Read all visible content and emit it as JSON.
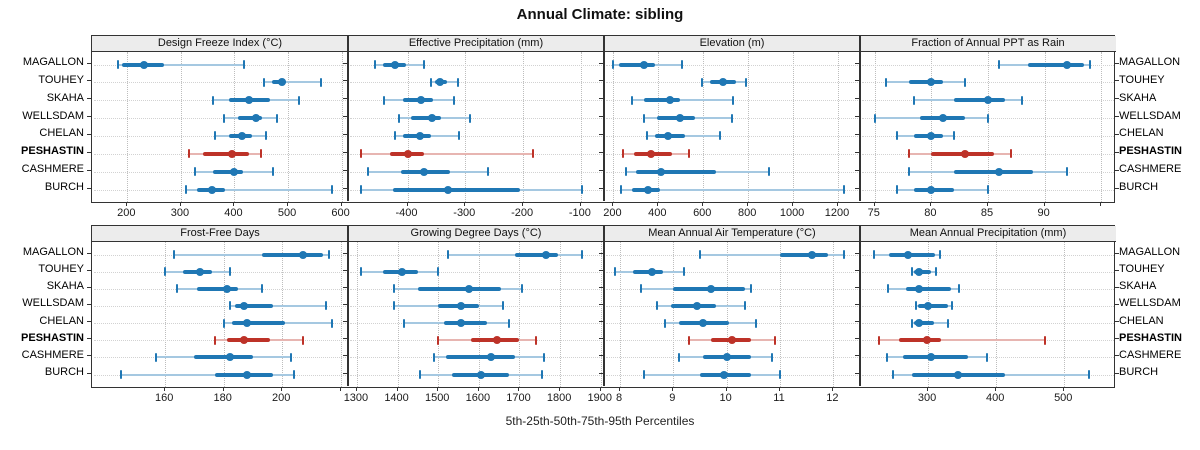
{
  "title": "Annual Climate: sibling",
  "caption": "5th-25th-50th-75th-95th Percentiles",
  "percentiles": [
    "5th",
    "25th",
    "50th",
    "75th",
    "95th"
  ],
  "sites": [
    {
      "name": "MAGALLON",
      "highlight": false
    },
    {
      "name": "TOUHEY",
      "highlight": false
    },
    {
      "name": "SKAHA",
      "highlight": false
    },
    {
      "name": "WELLSDAM",
      "highlight": false
    },
    {
      "name": "CHELAN",
      "highlight": false
    },
    {
      "name": "PESHASTIN",
      "highlight": true
    },
    {
      "name": "CASHMERE",
      "highlight": false
    },
    {
      "name": "BURCH",
      "highlight": false
    }
  ],
  "colors": {
    "blue": "#1f77b4",
    "blue_light": "#a5c8e1",
    "red": "#bd3228",
    "red_light": "#e7b5b1",
    "header_bg": "#ececec",
    "border": "#333333",
    "grid": "#bdbdbd"
  },
  "chart_data": [
    {
      "type": "dotplot-interval",
      "title": "Design Freeze Index (°C)",
      "xlim": [
        134,
        612
      ],
      "ticks": [
        {
          "v": 200,
          "label": "200"
        },
        {
          "v": 300,
          "label": "300"
        },
        {
          "v": 400,
          "label": "400"
        },
        {
          "v": 500,
          "label": "500"
        },
        {
          "v": 600,
          "label": "600"
        }
      ],
      "series": [
        {
          "name": "MAGALLON",
          "values": [
            183,
            190,
            232,
            268,
            418
          ]
        },
        {
          "name": "TOUHEY",
          "values": [
            456,
            471,
            489,
            497,
            561
          ]
        },
        {
          "name": "SKAHA",
          "values": [
            360,
            390,
            428,
            467,
            520
          ]
        },
        {
          "name": "WELLSDAM",
          "values": [
            381,
            407,
            440,
            452,
            480
          ]
        },
        {
          "name": "CHELAN",
          "values": [
            363,
            389,
            414,
            432,
            459
          ]
        },
        {
          "name": "PESHASTIN",
          "values": [
            315,
            341,
            395,
            428,
            449
          ]
        },
        {
          "name": "CASHMERE",
          "values": [
            327,
            360,
            399,
            416,
            472
          ]
        },
        {
          "name": "BURCH",
          "values": [
            309,
            330,
            358,
            383,
            582
          ]
        }
      ]
    },
    {
      "type": "dotplot-interval",
      "title": "Effective Precipitation (mm)",
      "xlim": [
        -503,
        -60
      ],
      "ticks": [
        {
          "v": -400,
          "label": "-400"
        },
        {
          "v": -300,
          "label": "-300"
        },
        {
          "v": -200,
          "label": "-200"
        },
        {
          "v": -100,
          "label": "-100"
        }
      ],
      "series": [
        {
          "name": "MAGALLON",
          "values": [
            -456,
            -442,
            -421,
            -403,
            -372
          ]
        },
        {
          "name": "TOUHEY",
          "values": [
            -360,
            -352,
            -344,
            -332,
            -313
          ]
        },
        {
          "name": "SKAHA",
          "values": [
            -441,
            -408,
            -376,
            -356,
            -320
          ]
        },
        {
          "name": "WELLSDAM",
          "values": [
            -415,
            -394,
            -358,
            -342,
            -292
          ]
        },
        {
          "name": "CHELAN",
          "values": [
            -421,
            -408,
            -378,
            -360,
            -311
          ]
        },
        {
          "name": "PESHASTIN",
          "values": [
            -480,
            -430,
            -400,
            -371,
            -183
          ]
        },
        {
          "name": "CASHMERE",
          "values": [
            -468,
            -412,
            -371,
            -327,
            -260
          ]
        },
        {
          "name": "BURCH",
          "values": [
            -480,
            -425,
            -330,
            -205,
            -98
          ]
        }
      ]
    },
    {
      "type": "dotplot-interval",
      "title": "Elevation (m)",
      "xlim": [
        158,
        1298
      ],
      "ticks": [
        {
          "v": 200,
          "label": "200"
        },
        {
          "v": 400,
          "label": "400"
        },
        {
          "v": 600,
          "label": "600"
        },
        {
          "v": 800,
          "label": "800"
        },
        {
          "v": 1000,
          "label": "1000"
        },
        {
          "v": 1200,
          "label": "1200"
        }
      ],
      "series": [
        {
          "name": "MAGALLON",
          "values": [
            197,
            225,
            335,
            385,
            505
          ]
        },
        {
          "name": "TOUHEY",
          "values": [
            595,
            630,
            690,
            745,
            790
          ]
        },
        {
          "name": "SKAHA",
          "values": [
            283,
            337,
            450,
            495,
            733
          ]
        },
        {
          "name": "WELLSDAM",
          "values": [
            334,
            392,
            498,
            564,
            728
          ]
        },
        {
          "name": "CHELAN",
          "values": [
            350,
            384,
            444,
            517,
            673
          ]
        },
        {
          "name": "PESHASTIN",
          "values": [
            244,
            290,
            366,
            460,
            536
          ]
        },
        {
          "name": "CASHMERE",
          "values": [
            256,
            300,
            412,
            658,
            892
          ]
        },
        {
          "name": "BURCH",
          "values": [
            233,
            283,
            353,
            408,
            1228
          ]
        }
      ]
    },
    {
      "type": "dotplot-interval",
      "title": "Fraction of Annual PPT as Rain",
      "xlim": [
        73.7,
        96.3
      ],
      "ticks": [
        {
          "v": 75,
          "label": "75"
        },
        {
          "v": 80,
          "label": "80"
        },
        {
          "v": 85,
          "label": "85"
        },
        {
          "v": 90,
          "label": "90"
        },
        {
          "v": 95,
          "label": ""
        }
      ],
      "series": [
        {
          "name": "MAGALLON",
          "values": [
            86,
            88.5,
            92,
            93.5,
            94
          ]
        },
        {
          "name": "TOUHEY",
          "values": [
            76,
            78,
            80,
            81,
            83
          ]
        },
        {
          "name": "SKAHA",
          "values": [
            78.5,
            82,
            85,
            86.5,
            88
          ]
        },
        {
          "name": "WELLSDAM",
          "values": [
            75,
            79,
            81,
            83,
            85
          ]
        },
        {
          "name": "CHELAN",
          "values": [
            77,
            78.5,
            80,
            81,
            82
          ]
        },
        {
          "name": "PESHASTIN",
          "values": [
            78,
            80,
            83,
            85.5,
            87
          ]
        },
        {
          "name": "CASHMERE",
          "values": [
            78,
            82,
            86,
            89,
            92
          ]
        },
        {
          "name": "BURCH",
          "values": [
            77,
            78.5,
            80,
            82,
            85
          ]
        }
      ]
    },
    {
      "type": "dotplot-interval",
      "title": "Frost-Free Days",
      "xlim": [
        135,
        222.5
      ],
      "ticks": [
        {
          "v": 160,
          "label": "160"
        },
        {
          "v": 180,
          "label": "180"
        },
        {
          "v": 200,
          "label": "200"
        },
        {
          "v": 220,
          "label": ""
        }
      ],
      "series": [
        {
          "name": "MAGALLON",
          "values": [
            163,
            193,
            207,
            214,
            216
          ]
        },
        {
          "name": "TOUHEY",
          "values": [
            160,
            166,
            172,
            176,
            182
          ]
        },
        {
          "name": "SKAHA",
          "values": [
            164,
            171,
            181,
            185,
            193
          ]
        },
        {
          "name": "WELLSDAM",
          "values": [
            182,
            184,
            187,
            197,
            215
          ]
        },
        {
          "name": "CHELAN",
          "values": [
            180,
            183,
            188,
            201,
            217
          ]
        },
        {
          "name": "PESHASTIN",
          "values": [
            177,
            181,
            187,
            196,
            207
          ]
        },
        {
          "name": "CASHMERE",
          "values": [
            157,
            170,
            182,
            190,
            203
          ]
        },
        {
          "name": "BURCH",
          "values": [
            145,
            177,
            188,
            197,
            204
          ]
        }
      ]
    },
    {
      "type": "dotplot-interval",
      "title": "Growing Degree Days (°C)",
      "xlim": [
        1278,
        1908
      ],
      "ticks": [
        {
          "v": 1300,
          "label": "1300"
        },
        {
          "v": 1400,
          "label": "1400"
        },
        {
          "v": 1500,
          "label": "1500"
        },
        {
          "v": 1600,
          "label": "1600"
        },
        {
          "v": 1700,
          "label": "1700"
        },
        {
          "v": 1800,
          "label": "1800"
        },
        {
          "v": 1900,
          "label": "1900"
        }
      ],
      "series": [
        {
          "name": "MAGALLON",
          "values": [
            1525,
            1690,
            1765,
            1795,
            1855
          ]
        },
        {
          "name": "TOUHEY",
          "values": [
            1310,
            1365,
            1410,
            1450,
            1500
          ]
        },
        {
          "name": "SKAHA",
          "values": [
            1390,
            1450,
            1575,
            1655,
            1705
          ]
        },
        {
          "name": "WELLSDAM",
          "values": [
            1390,
            1500,
            1555,
            1600,
            1660
          ]
        },
        {
          "name": "CHELAN",
          "values": [
            1415,
            1515,
            1555,
            1620,
            1675
          ]
        },
        {
          "name": "PESHASTIN",
          "values": [
            1500,
            1580,
            1645,
            1700,
            1740
          ]
        },
        {
          "name": "CASHMERE",
          "values": [
            1490,
            1520,
            1630,
            1690,
            1760
          ]
        },
        {
          "name": "BURCH",
          "values": [
            1455,
            1535,
            1605,
            1675,
            1755
          ]
        }
      ]
    },
    {
      "type": "dotplot-interval",
      "title": "Mean Annual Air Temperature (°C)",
      "xlim": [
        7.7,
        12.5
      ],
      "ticks": [
        {
          "v": 8,
          "label": "8"
        },
        {
          "v": 9,
          "label": "9"
        },
        {
          "v": 10,
          "label": "10"
        },
        {
          "v": 11,
          "label": "11"
        },
        {
          "v": 12,
          "label": "12"
        }
      ],
      "series": [
        {
          "name": "MAGALLON",
          "values": [
            9.5,
            11.0,
            11.6,
            11.9,
            12.2
          ]
        },
        {
          "name": "TOUHEY",
          "values": [
            7.9,
            8.25,
            8.6,
            8.8,
            9.2
          ]
        },
        {
          "name": "SKAHA",
          "values": [
            8.4,
            9.0,
            9.7,
            10.35,
            10.45
          ]
        },
        {
          "name": "WELLSDAM",
          "values": [
            8.7,
            8.95,
            9.45,
            9.8,
            10.35
          ]
        },
        {
          "name": "CHELAN",
          "values": [
            8.85,
            9.1,
            9.55,
            10.05,
            10.55
          ]
        },
        {
          "name": "PESHASTIN",
          "values": [
            9.3,
            9.7,
            10.1,
            10.45,
            10.9
          ]
        },
        {
          "name": "CASHMERE",
          "values": [
            9.1,
            9.55,
            10.0,
            10.45,
            10.85
          ]
        },
        {
          "name": "BURCH",
          "values": [
            8.45,
            9.5,
            9.95,
            10.45,
            11.0
          ]
        }
      ]
    },
    {
      "type": "dotplot-interval",
      "title": "Mean Annual Precipitation (mm)",
      "xlim": [
        200,
        576
      ],
      "ticks": [
        {
          "v": 300,
          "label": "300"
        },
        {
          "v": 400,
          "label": "400"
        },
        {
          "v": 500,
          "label": "500"
        }
      ],
      "series": [
        {
          "name": "MAGALLON",
          "values": [
            221,
            242,
            270,
            310,
            317
          ]
        },
        {
          "name": "TOUHEY",
          "values": [
            277,
            280,
            287,
            305,
            311
          ]
        },
        {
          "name": "SKAHA",
          "values": [
            241,
            267,
            287,
            333,
            346
          ]
        },
        {
          "name": "WELLSDAM",
          "values": [
            282,
            285,
            300,
            330,
            335
          ]
        },
        {
          "name": "CHELAN",
          "values": [
            277,
            280,
            286,
            308,
            329
          ]
        },
        {
          "name": "PESHASTIN",
          "values": [
            228,
            257,
            298,
            319,
            472
          ]
        },
        {
          "name": "CASHMERE",
          "values": [
            239,
            263,
            304,
            359,
            386
          ]
        },
        {
          "name": "BURCH",
          "values": [
            249,
            277,
            344,
            413,
            537
          ]
        }
      ]
    }
  ]
}
